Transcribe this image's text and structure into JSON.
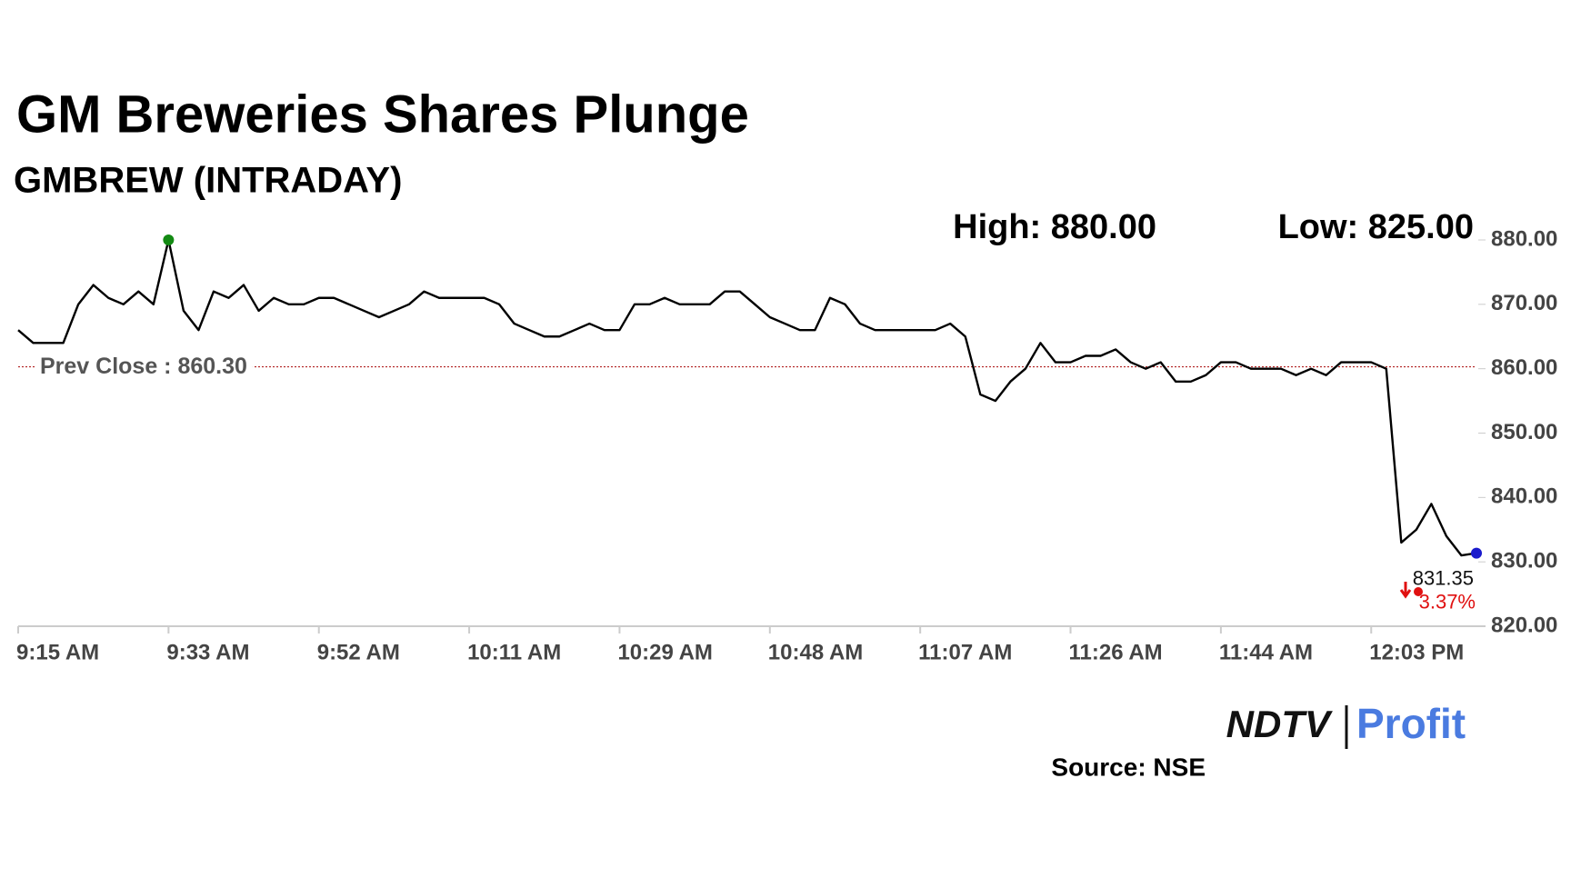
{
  "chart_data": {
    "type": "line",
    "title": "GM Breweries Shares Plunge",
    "subtitle": "GMBREW (INTRADAY)",
    "high_label": "High: 880.00",
    "low_label": "Low: 825.00",
    "categories": [
      "9:15 AM",
      null,
      null,
      null,
      null,
      null,
      null,
      null,
      null,
      null,
      "9:33 AM",
      null,
      null,
      null,
      null,
      null,
      null,
      null,
      null,
      null,
      "9:52 AM",
      null,
      null,
      null,
      null,
      null,
      null,
      null,
      null,
      null,
      "10:11 AM",
      null,
      null,
      null,
      null,
      null,
      null,
      null,
      null,
      null,
      "10:29 AM",
      null,
      null,
      null,
      null,
      null,
      null,
      null,
      null,
      null,
      "10:48 AM",
      null,
      null,
      null,
      null,
      null,
      null,
      null,
      null,
      null,
      "11:07 AM",
      null,
      null,
      null,
      null,
      null,
      null,
      null,
      null,
      null,
      "11:26 AM",
      null,
      null,
      null,
      null,
      null,
      null,
      null,
      null,
      null,
      "11:44 AM",
      null,
      null,
      null,
      null,
      null,
      null,
      null,
      null,
      null,
      "12:03 PM",
      null,
      null,
      null,
      null,
      null,
      null,
      null
    ],
    "series": [
      {
        "name": "GMBREW",
        "color": "#000000",
        "values": [
          866,
          864,
          864,
          864,
          870,
          873,
          871,
          870,
          872,
          870,
          880,
          869,
          866,
          872,
          871,
          873,
          869,
          871,
          870,
          870,
          871,
          871,
          870,
          869,
          868,
          869,
          870,
          872,
          871,
          871,
          871,
          871,
          870,
          867,
          866,
          865,
          865,
          866,
          867,
          866,
          866,
          870,
          870,
          871,
          870,
          870,
          870,
          872,
          872,
          870,
          868,
          867,
          866,
          866,
          871,
          870,
          867,
          866,
          866,
          866,
          866,
          866,
          867,
          865,
          856,
          855,
          858,
          860,
          864,
          861,
          861,
          862,
          862,
          863,
          861,
          860,
          861,
          858,
          858,
          859,
          861,
          861,
          860,
          860,
          860,
          859,
          860,
          859,
          861,
          861,
          861,
          860,
          833,
          835,
          839,
          834,
          831,
          831.35
        ]
      }
    ],
    "high_marker_color": "#138a13",
    "last_marker_color": "#1a1acc",
    "prev_close": {
      "value": 860.3,
      "label": "Prev Close : 860.30",
      "color": "#b22222"
    },
    "last": {
      "value": 831.35,
      "label": "831.35"
    },
    "change": {
      "value": 3.37,
      "label": "3.37%",
      "color": "#e01010"
    },
    "ylim": [
      820,
      880
    ],
    "yticks": [
      {
        "value": 820,
        "label": "820.00"
      },
      {
        "value": 830,
        "label": "830.00"
      },
      {
        "value": 840,
        "label": "840.00"
      },
      {
        "value": 850,
        "label": "850.00"
      },
      {
        "value": 860,
        "label": "860.00"
      },
      {
        "value": 870,
        "label": "870.00"
      },
      {
        "value": 880,
        "label": "880.00"
      }
    ],
    "brand": {
      "left": "NDTV",
      "right": "Profit"
    },
    "source": "Source: NSE"
  }
}
